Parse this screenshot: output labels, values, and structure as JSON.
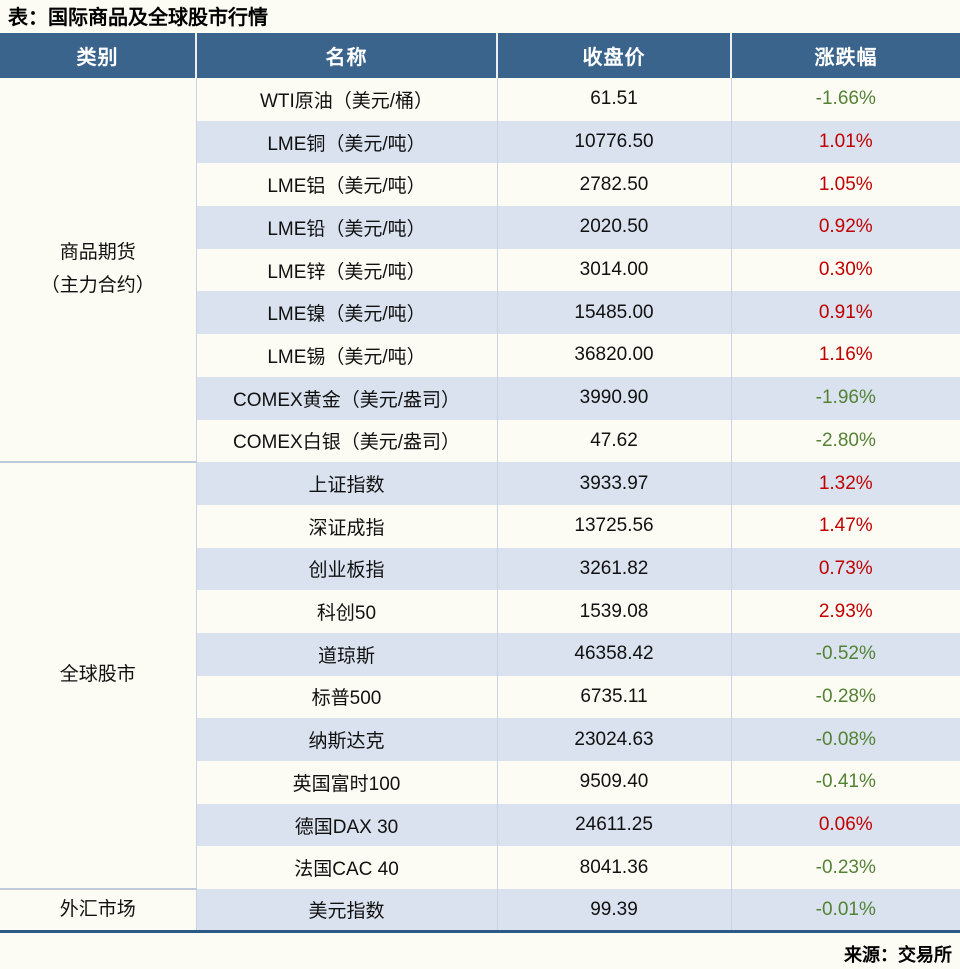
{
  "title": "表：国际商品及全球股市行情",
  "source": "来源：交易所",
  "colors": {
    "header_bg": "#3A648C",
    "header_text": "#FFFFFF",
    "row_bg": "#FDFCF4",
    "row_alt_bg": "#D9E2EE",
    "up_red": "#C00000",
    "down_green": "#548235",
    "table_bottom_border": "#2C5A87"
  },
  "table": {
    "headers": [
      "类别",
      "名称",
      "收盘价",
      "涨跌幅"
    ],
    "groups": [
      {
        "category": "商品期货\n（主力合约）",
        "rows": [
          {
            "name": "WTI原油（美元/桶）",
            "close": "61.51",
            "change": "-1.66%"
          },
          {
            "name": "LME铜（美元/吨）",
            "close": "10776.50",
            "change": "1.01%"
          },
          {
            "name": "LME铝（美元/吨）",
            "close": "2782.50",
            "change": "1.05%"
          },
          {
            "name": "LME铅（美元/吨）",
            "close": "2020.50",
            "change": "0.92%"
          },
          {
            "name": "LME锌（美元/吨）",
            "close": "3014.00",
            "change": "0.30%"
          },
          {
            "name": "LME镍（美元/吨）",
            "close": "15485.00",
            "change": "0.91%"
          },
          {
            "name": "LME锡（美元/吨）",
            "close": "36820.00",
            "change": "1.16%"
          },
          {
            "name": "COMEX黄金（美元/盎司）",
            "close": "3990.90",
            "change": "-1.96%"
          },
          {
            "name": "COMEX白银（美元/盎司）",
            "close": "47.62",
            "change": "-2.80%"
          }
        ]
      },
      {
        "category": "全球股市",
        "rows": [
          {
            "name": "上证指数",
            "close": "3933.97",
            "change": "1.32%"
          },
          {
            "name": "深证成指",
            "close": "13725.56",
            "change": "1.47%"
          },
          {
            "name": "创业板指",
            "close": "3261.82",
            "change": "0.73%"
          },
          {
            "name": "科创50",
            "close": "1539.08",
            "change": "2.93%"
          },
          {
            "name": "道琼斯",
            "close": "46358.42",
            "change": "-0.52%"
          },
          {
            "name": "标普500",
            "close": "6735.11",
            "change": "-0.28%"
          },
          {
            "name": "纳斯达克",
            "close": "23024.63",
            "change": "-0.08%"
          },
          {
            "name": "英国富时100",
            "close": "9509.40",
            "change": "-0.41%"
          },
          {
            "name": "德国DAX 30",
            "close": "24611.25",
            "change": "0.06%"
          },
          {
            "name": "法国CAC 40",
            "close": "8041.36",
            "change": "-0.23%"
          }
        ]
      },
      {
        "category": "外汇市场",
        "rows": [
          {
            "name": "美元指数",
            "close": "99.39",
            "change": "-0.01%"
          }
        ]
      }
    ]
  },
  "chart_data": {
    "type": "table",
    "title": "表：国际商品及全球股市行情",
    "columns": [
      "类别",
      "名称",
      "收盘价",
      "涨跌幅"
    ],
    "rows": [
      [
        "商品期货（主力合约）",
        "WTI原油（美元/桶）",
        61.51,
        -1.66
      ],
      [
        "商品期货（主力合约）",
        "LME铜（美元/吨）",
        10776.5,
        1.01
      ],
      [
        "商品期货（主力合约）",
        "LME铝（美元/吨）",
        2782.5,
        1.05
      ],
      [
        "商品期货（主力合约）",
        "LME铅（美元/吨）",
        2020.5,
        0.92
      ],
      [
        "商品期货（主力合约）",
        "LME锌（美元/吨）",
        3014.0,
        0.3
      ],
      [
        "商品期货（主力合约）",
        "LME镍（美元/吨）",
        15485.0,
        0.91
      ],
      [
        "商品期货（主力合约）",
        "LME锡（美元/吨）",
        36820.0,
        1.16
      ],
      [
        "商品期货（主力合约）",
        "COMEX黄金（美元/盎司）",
        3990.9,
        -1.96
      ],
      [
        "商品期货（主力合约）",
        "COMEX白银（美元/盎司）",
        47.62,
        -2.8
      ],
      [
        "全球股市",
        "上证指数",
        3933.97,
        1.32
      ],
      [
        "全球股市",
        "深证成指",
        13725.56,
        1.47
      ],
      [
        "全球股市",
        "创业板指",
        3261.82,
        0.73
      ],
      [
        "全球股市",
        "科创50",
        1539.08,
        2.93
      ],
      [
        "全球股市",
        "道琼斯",
        46358.42,
        -0.52
      ],
      [
        "全球股市",
        "标普500",
        6735.11,
        -0.28
      ],
      [
        "全球股市",
        "纳斯达克",
        23024.63,
        -0.08
      ],
      [
        "全球股市",
        "英国富时100",
        9509.4,
        -0.41
      ],
      [
        "全球股市",
        "德国DAX 30",
        24611.25,
        0.06
      ],
      [
        "全球股市",
        "法国CAC 40",
        8041.36,
        -0.23
      ],
      [
        "外汇市场",
        "美元指数",
        99.39,
        -0.01
      ]
    ],
    "change_unit": "%",
    "positive_color": "#C00000",
    "negative_color": "#548235"
  }
}
